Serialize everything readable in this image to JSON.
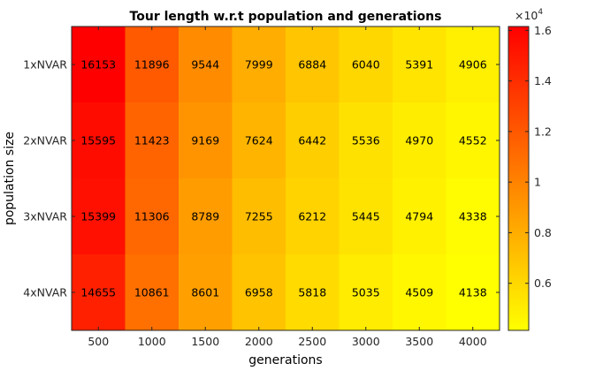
{
  "chart_data": {
    "type": "heatmap",
    "title": "Tour length w.r.t population and generations",
    "xlabel": "generations",
    "ylabel": "population size",
    "x_categories": [
      "500",
      "1000",
      "1500",
      "2000",
      "2500",
      "3000",
      "3500",
      "4000"
    ],
    "y_categories": [
      "1xNVAR",
      "2xNVAR",
      "3xNVAR",
      "4xNVAR"
    ],
    "values": [
      [
        16153,
        11896,
        9544,
        7999,
        6884,
        6040,
        5391,
        4906
      ],
      [
        15595,
        11423,
        9169,
        7624,
        6442,
        5536,
        4970,
        4552
      ],
      [
        15399,
        11306,
        8789,
        7255,
        6212,
        5445,
        4794,
        4338
      ],
      [
        14655,
        10861,
        8601,
        6958,
        5818,
        5035,
        4509,
        4138
      ]
    ],
    "colormap": "autumn-reversed",
    "colors": {
      "low": "#ffff00",
      "high": "#ff0000"
    },
    "colorbar": {
      "multiplier": "×10",
      "exponent": "4",
      "ticks": [
        0.6,
        0.8,
        1,
        1.2,
        1.4,
        1.6
      ],
      "tick_labels": [
        "0.6",
        "0.8",
        "1",
        "1.2",
        "1.4",
        "1.6"
      ]
    }
  }
}
